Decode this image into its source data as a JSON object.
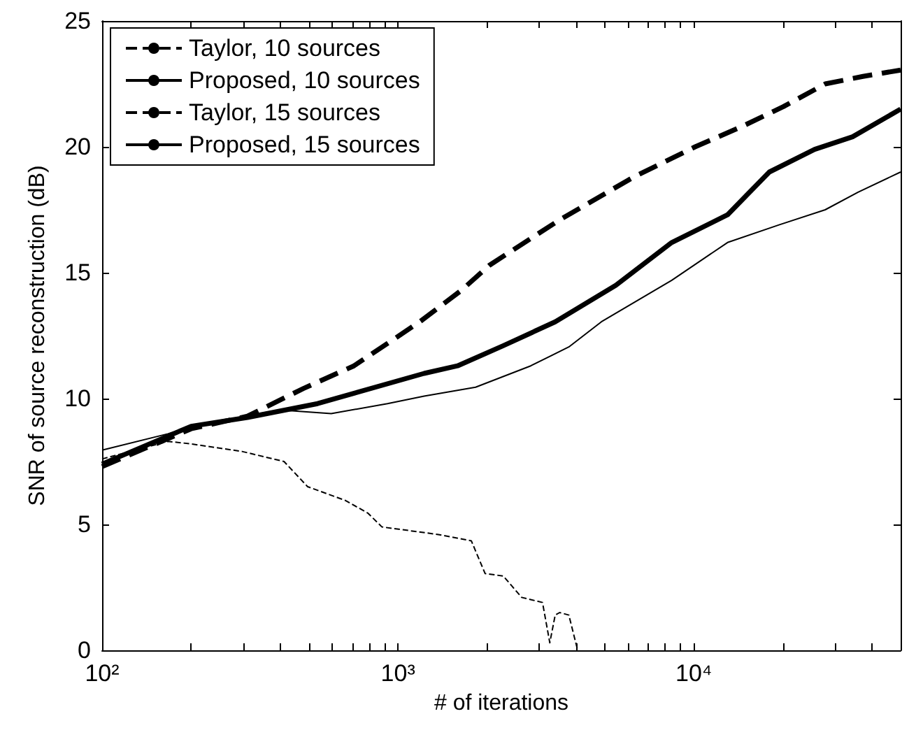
{
  "chart_data": {
    "type": "line",
    "xlabel": "# of iterations",
    "ylabel": "SNR of source reconstruction (dB)",
    "log": "x",
    "xlim": [
      100,
      50000
    ],
    "ylim": [
      0,
      25
    ],
    "xticks": [
      {
        "value": 100,
        "label": "10²"
      },
      {
        "value": 200,
        "label": null
      },
      {
        "value": 300,
        "label": null
      },
      {
        "value": 400,
        "label": null
      },
      {
        "value": 500,
        "label": null
      },
      {
        "value": 600,
        "label": null
      },
      {
        "value": 700,
        "label": null
      },
      {
        "value": 800,
        "label": null
      },
      {
        "value": 900,
        "label": null
      },
      {
        "value": 1000,
        "label": "10³"
      },
      {
        "value": 2000,
        "label": null
      },
      {
        "value": 3000,
        "label": null
      },
      {
        "value": 4000,
        "label": null
      },
      {
        "value": 5000,
        "label": null
      },
      {
        "value": 6000,
        "label": null
      },
      {
        "value": 7000,
        "label": null
      },
      {
        "value": 8000,
        "label": null
      },
      {
        "value": 9000,
        "label": null
      },
      {
        "value": 10000,
        "label": "10⁴"
      },
      {
        "value": 20000,
        "label": null
      },
      {
        "value": 30000,
        "label": null
      },
      {
        "value": 40000,
        "label": null
      }
    ],
    "yticks": [
      0,
      5,
      10,
      15,
      20,
      25
    ],
    "grid": false,
    "legend": "top left",
    "marker": "none",
    "series": [
      {
        "name": "Taylor, 10 sources",
        "color": "#000000",
        "line_style": "dashed",
        "x": [
          100,
          200,
          310,
          479,
          710,
          1185,
          1638,
          2040,
          3520,
          6260,
          10100,
          14500,
          20100,
          27800,
          37300,
          50000
        ],
        "values": [
          7.3,
          8.8,
          9.3,
          10.4,
          11.3,
          13.05,
          14.3,
          15.3,
          17.1,
          18.8,
          20.0,
          20.8,
          21.6,
          22.5,
          22.8,
          23.05
        ]
      },
      {
        "name": "Proposed, 10 sources",
        "color": "#000000",
        "line_style": "solid",
        "x": [
          100,
          200,
          310,
          535,
          1226,
          1590,
          2270,
          3400,
          5450,
          8420,
          13000,
          15000,
          18000,
          25600,
          34400,
          50000
        ],
        "values": [
          7.4,
          8.9,
          9.25,
          9.8,
          11.0,
          11.3,
          12.1,
          13.05,
          14.5,
          16.2,
          17.3,
          18.05,
          19.0,
          19.9,
          20.4,
          21.5
        ]
      },
      {
        "name": "Taylor, 15 sources",
        "color": "#000000",
        "line_style": "dashed",
        "x": [
          100,
          167,
          200,
          297,
          412,
          495,
          665,
          791,
          883,
          1370,
          1770,
          1970,
          2270,
          2620,
          3080,
          3260,
          3400,
          3520,
          3780,
          4050
        ],
        "values": [
          7.6,
          8.3,
          8.2,
          7.9,
          7.5,
          6.5,
          5.95,
          5.45,
          4.9,
          4.6,
          4.35,
          3.05,
          2.95,
          2.1,
          1.9,
          0.3,
          1.4,
          1.5,
          1.4,
          0.0
        ]
      },
      {
        "name": "Proposed, 15 sources",
        "color": "#000000",
        "line_style": "solid",
        "x": [
          100,
          167,
          200,
          398,
          595,
          922,
          1226,
          1830,
          2810,
          3780,
          4870,
          8420,
          13000,
          19400,
          27800,
          35900,
          50000
        ],
        "values": [
          7.95,
          8.6,
          8.9,
          9.55,
          9.4,
          9.8,
          10.1,
          10.45,
          11.3,
          12.05,
          13.05,
          14.7,
          16.2,
          16.9,
          17.5,
          18.2,
          19.0
        ]
      }
    ]
  }
}
